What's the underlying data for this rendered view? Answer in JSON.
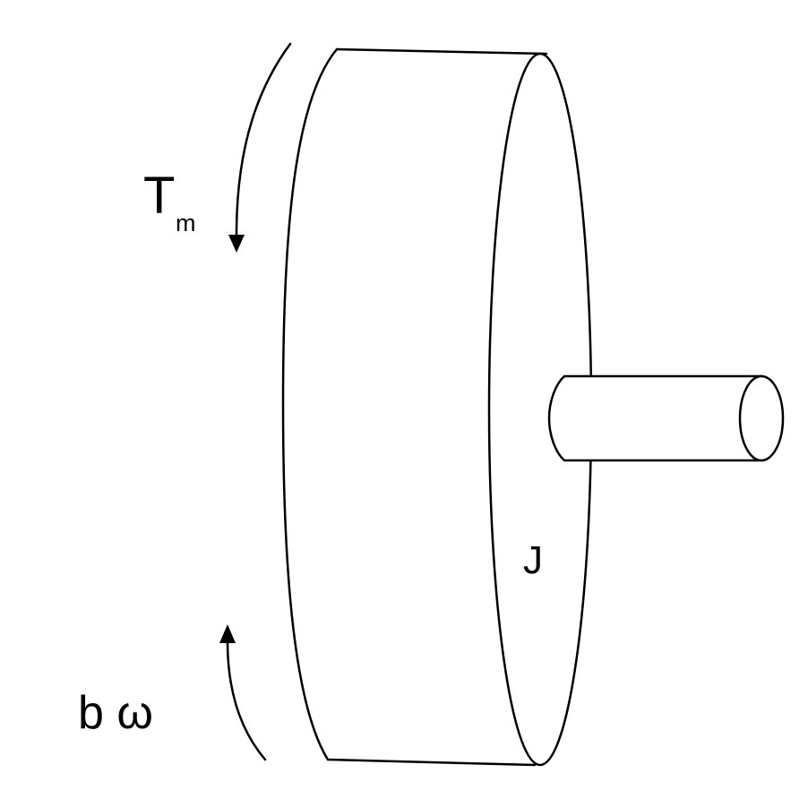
{
  "diagram": {
    "labels": {
      "torque_main": "T",
      "torque_subscript": "m",
      "damping": "b ω",
      "inertia": "J"
    },
    "colors": {
      "line": "#000000",
      "background": "#ffffff"
    }
  }
}
